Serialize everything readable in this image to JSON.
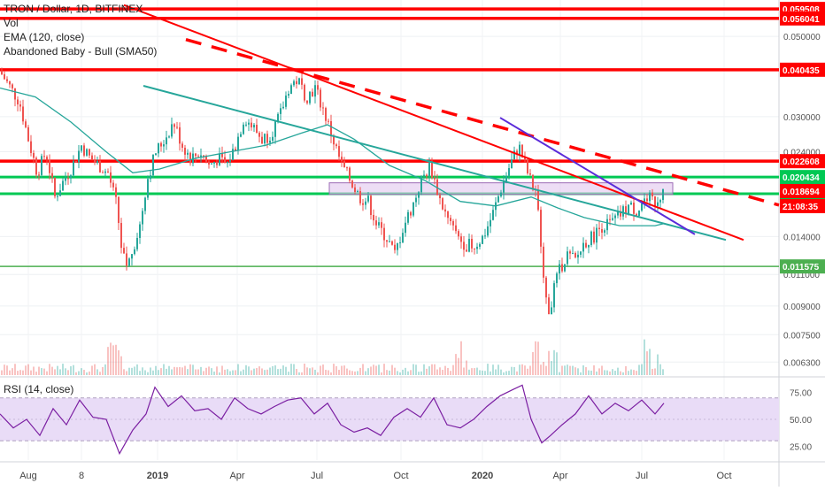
{
  "legend": {
    "symbol": "TRON / Dollar, 1D, BITFINEX",
    "vol": "Vol",
    "ema": "EMA (120, close)",
    "pattern": "Abandoned Baby - Bull (SMA50)",
    "rsi": "RSI (14, close)"
  },
  "colors": {
    "up": "#26a69a",
    "down": "#ef5350",
    "resistance": "#ff0000",
    "support": "#00c853",
    "ema": "#26a69a",
    "rsi": "#7b1fa2",
    "rsi_band": "#e9dcf7",
    "trend_purple": "#5b2bd9",
    "zone_fill": "#e1c6ee"
  },
  "chart_data": [
    {
      "type": "candlestick",
      "title": "TRON / Dollar, 1D, BITFINEX",
      "y_scale": "log",
      "ylim": [
        0.0058,
        0.063
      ],
      "x_ticks": [
        "Aug",
        "8",
        "2019",
        "Apr",
        "Jul",
        "Oct",
        "2020",
        "Apr",
        "Jul",
        "Oct"
      ],
      "y_ticks": [
        0.05,
        0.03,
        0.024,
        0.014,
        0.011,
        0.009,
        0.0075,
        0.0063
      ],
      "y_tick_labels": [
        "0.050000",
        "0.030000",
        "0.024000",
        "0.014000",
        "0.011000",
        "0.009000",
        "0.007500",
        "0.006300"
      ],
      "horizontal_levels": [
        {
          "value": 0.059508,
          "label": "0.059508",
          "color": "#ff0000"
        },
        {
          "value": 0.056041,
          "label": "0.056041",
          "color": "#ff0000"
        },
        {
          "value": 0.040435,
          "label": "0.040435",
          "color": "#ff0000"
        },
        {
          "value": 0.022608,
          "label": "0.022608",
          "color": "#ff0000"
        },
        {
          "value": 0.020434,
          "label": "0.020434",
          "color": "#00c853"
        },
        {
          "value": 0.018377,
          "label": "0.018377",
          "color": "#00c853"
        },
        {
          "value": 0.011575,
          "label": "0.011575",
          "color": "#4caf50"
        }
      ],
      "price_label": {
        "value": 0.018694,
        "label": "0.018694"
      },
      "countdown_label": "21:08:35",
      "zone": {
        "low": 0.0183,
        "high": 0.0197
      },
      "path_points": [
        [
          0,
          0.04
        ],
        [
          12,
          0.036
        ],
        [
          22,
          0.033
        ],
        [
          32,
          0.026
        ],
        [
          42,
          0.021
        ],
        [
          52,
          0.024
        ],
        [
          62,
          0.018
        ],
        [
          72,
          0.02
        ],
        [
          82,
          0.022
        ],
        [
          92,
          0.025
        ],
        [
          102,
          0.023
        ],
        [
          112,
          0.022
        ],
        [
          122,
          0.021
        ],
        [
          132,
          0.017
        ],
        [
          138,
          0.0125
        ],
        [
          144,
          0.0115
        ],
        [
          150,
          0.013
        ],
        [
          158,
          0.015
        ],
        [
          166,
          0.02
        ],
        [
          176,
          0.024
        ],
        [
          186,
          0.026
        ],
        [
          196,
          0.029
        ],
        [
          206,
          0.025
        ],
        [
          216,
          0.023
        ],
        [
          226,
          0.024
        ],
        [
          236,
          0.022
        ],
        [
          246,
          0.023
        ],
        [
          256,
          0.022
        ],
        [
          266,
          0.025
        ],
        [
          276,
          0.03
        ],
        [
          286,
          0.028
        ],
        [
          296,
          0.026
        ],
        [
          306,
          0.027
        ],
        [
          316,
          0.03
        ],
        [
          326,
          0.036
        ],
        [
          336,
          0.038
        ],
        [
          346,
          0.034
        ],
        [
          356,
          0.036
        ],
        [
          366,
          0.031
        ],
        [
          376,
          0.026
        ],
        [
          386,
          0.022
        ],
        [
          396,
          0.02
        ],
        [
          406,
          0.018
        ],
        [
          416,
          0.0175
        ],
        [
          426,
          0.015
        ],
        [
          436,
          0.014
        ],
        [
          446,
          0.0125
        ],
        [
          456,
          0.015
        ],
        [
          466,
          0.017
        ],
        [
          476,
          0.02
        ],
        [
          486,
          0.022
        ],
        [
          496,
          0.018
        ],
        [
          506,
          0.0155
        ],
        [
          516,
          0.014
        ],
        [
          526,
          0.0133
        ],
        [
          536,
          0.0132
        ],
        [
          546,
          0.014
        ],
        [
          556,
          0.016
        ],
        [
          566,
          0.019
        ],
        [
          576,
          0.022
        ],
        [
          586,
          0.025
        ],
        [
          596,
          0.021
        ],
        [
          606,
          0.018
        ],
        [
          612,
          0.013
        ],
        [
          618,
          0.0085
        ],
        [
          624,
          0.0095
        ],
        [
          630,
          0.011
        ],
        [
          640,
          0.0125
        ],
        [
          650,
          0.012
        ],
        [
          660,
          0.0135
        ],
        [
          670,
          0.014
        ],
        [
          680,
          0.015
        ],
        [
          690,
          0.0152
        ],
        [
          700,
          0.016
        ],
        [
          710,
          0.017
        ],
        [
          720,
          0.0165
        ],
        [
          730,
          0.018
        ],
        [
          740,
          0.0175
        ],
        [
          750,
          0.0188
        ]
      ],
      "ema_points": [
        [
          0,
          0.036
        ],
        [
          40,
          0.034
        ],
        [
          80,
          0.029
        ],
        [
          120,
          0.024
        ],
        [
          150,
          0.021
        ],
        [
          180,
          0.0215
        ],
        [
          220,
          0.023
        ],
        [
          260,
          0.024
        ],
        [
          300,
          0.025
        ],
        [
          340,
          0.027
        ],
        [
          370,
          0.0285
        ],
        [
          400,
          0.026
        ],
        [
          440,
          0.022
        ],
        [
          480,
          0.02
        ],
        [
          520,
          0.0175
        ],
        [
          560,
          0.017
        ],
        [
          600,
          0.018
        ],
        [
          630,
          0.0168
        ],
        [
          660,
          0.0158
        ],
        [
          700,
          0.015
        ],
        [
          740,
          0.015
        ],
        [
          750,
          0.0152
        ]
      ],
      "trendlines": [
        {
          "kind": "solid",
          "color": "#ff0000",
          "from": [
            140,
            0.061
          ],
          "to": [
            840,
            0.0137
          ]
        },
        {
          "kind": "dashed",
          "color": "#ff0000",
          "from": [
            210,
            0.049
          ],
          "to": [
            880,
            0.0171
          ]
        },
        {
          "kind": "solid",
          "color": "#26a69a",
          "from": [
            162,
            0.0365
          ],
          "to": [
            820,
            0.0137
          ]
        },
        {
          "kind": "solid",
          "color": "#5b2bd9",
          "from": [
            565,
            0.0298
          ],
          "to": [
            785,
            0.0142
          ]
        }
      ]
    },
    {
      "type": "line",
      "title": "RSI (14, close)",
      "ylim": [
        12,
        88
      ],
      "y_ticks": [
        75,
        50,
        25
      ],
      "y_tick_labels": [
        "75.00",
        "50.00",
        "25.00"
      ],
      "band": [
        30,
        70
      ],
      "points": [
        [
          0,
          55
        ],
        [
          15,
          42
        ],
        [
          30,
          50
        ],
        [
          45,
          35
        ],
        [
          60,
          60
        ],
        [
          75,
          45
        ],
        [
          90,
          68
        ],
        [
          105,
          52
        ],
        [
          120,
          50
        ],
        [
          135,
          18
        ],
        [
          150,
          40
        ],
        [
          165,
          55
        ],
        [
          175,
          80
        ],
        [
          190,
          62
        ],
        [
          205,
          72
        ],
        [
          220,
          58
        ],
        [
          235,
          60
        ],
        [
          250,
          50
        ],
        [
          265,
          70
        ],
        [
          280,
          60
        ],
        [
          295,
          55
        ],
        [
          310,
          62
        ],
        [
          325,
          68
        ],
        [
          340,
          70
        ],
        [
          355,
          55
        ],
        [
          370,
          65
        ],
        [
          385,
          45
        ],
        [
          400,
          38
        ],
        [
          415,
          42
        ],
        [
          430,
          35
        ],
        [
          445,
          52
        ],
        [
          460,
          60
        ],
        [
          475,
          52
        ],
        [
          490,
          70
        ],
        [
          505,
          45
        ],
        [
          520,
          42
        ],
        [
          535,
          50
        ],
        [
          550,
          62
        ],
        [
          565,
          72
        ],
        [
          580,
          78
        ],
        [
          590,
          82
        ],
        [
          600,
          50
        ],
        [
          612,
          28
        ],
        [
          622,
          35
        ],
        [
          635,
          45
        ],
        [
          650,
          55
        ],
        [
          665,
          72
        ],
        [
          680,
          55
        ],
        [
          695,
          65
        ],
        [
          710,
          58
        ],
        [
          725,
          68
        ],
        [
          740,
          55
        ],
        [
          750,
          65
        ]
      ]
    }
  ]
}
